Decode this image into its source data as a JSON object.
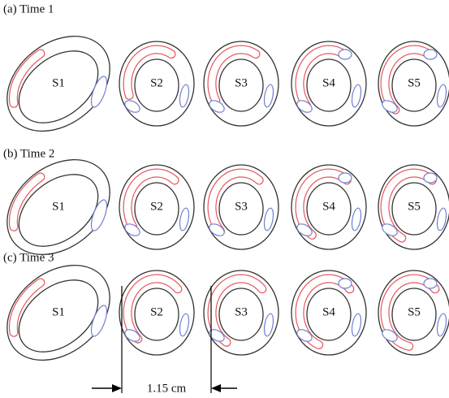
{
  "rows": [
    {
      "label": "(a) Time 1",
      "slices": [
        "S1",
        "S2",
        "S3",
        "S4",
        "S5"
      ]
    },
    {
      "label": "(b) Time 2",
      "slices": [
        "S1",
        "S2",
        "S3",
        "S4",
        "S5"
      ]
    },
    {
      "label": "(c) Time 3",
      "slices": [
        "S1",
        "S2",
        "S3",
        "S4",
        "S5"
      ]
    }
  ],
  "scale_label": "1.15 cm"
}
